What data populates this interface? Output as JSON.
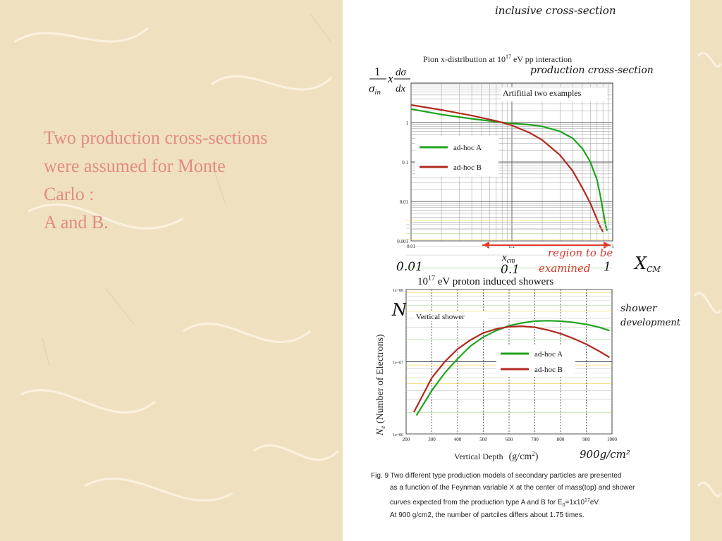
{
  "slide": {
    "lines": [
      "Two production cross-sections",
      "were assumed for Monte",
      "Carlo :",
      "A and B."
    ],
    "color": "#e28a86"
  },
  "notes": {
    "top": "inclusive cross-section",
    "production": "production cross-section",
    "region": [
      "region to be",
      "examined"
    ],
    "x_small": "0.01",
    "x_mid": "0.1",
    "x_one": "1",
    "xcm": "X",
    "xcm_sub": "CM",
    "ne": "N",
    "ne_sub": "e",
    "shower": [
      "shower",
      "development"
    ],
    "depth_mark": "900g/cm²"
  },
  "chart_data": [
    {
      "type": "line",
      "title": "Pion x-distribution at 10",
      "title_sup": "17",
      "title_suffix": " eV pp interaction",
      "ylabel_num": "dσ",
      "ylabel_den": "dx",
      "ylabel_prefix_num": "1",
      "ylabel_prefix_den": "σ",
      "ylabel_prefix_sub": "in",
      "ylabel_x": "x",
      "xlabel": "x",
      "xlabel_sub": "cm",
      "annotation": "Artifitial two  examples",
      "xscale": "log",
      "yscale": "log",
      "xlim": [
        0.01,
        1
      ],
      "ylim": [
        0.001,
        10
      ],
      "xticks": [
        "0.01",
        "0.1",
        "1"
      ],
      "yticks": [
        "0.001",
        "0.01",
        "0.1",
        "1"
      ],
      "legend_placement": "left",
      "grid": true,
      "series": [
        {
          "name": "ad-hoc A",
          "color": "#1fa31f",
          "x": [
            0.01,
            0.02,
            0.04,
            0.07,
            0.1,
            0.15,
            0.2,
            0.3,
            0.4,
            0.5,
            0.6,
            0.7,
            0.75,
            0.8,
            0.85,
            0.88
          ],
          "y": [
            2.2,
            1.6,
            1.25,
            1.05,
            0.95,
            0.88,
            0.8,
            0.6,
            0.4,
            0.22,
            0.1,
            0.035,
            0.015,
            0.006,
            0.0025,
            0.0018
          ]
        },
        {
          "name": "ad-hoc B",
          "color": "#b02a20",
          "x": [
            0.01,
            0.02,
            0.04,
            0.07,
            0.1,
            0.15,
            0.2,
            0.3,
            0.4,
            0.5,
            0.6,
            0.7,
            0.75,
            0.8
          ],
          "y": [
            2.8,
            2.1,
            1.5,
            1.1,
            0.85,
            0.55,
            0.36,
            0.15,
            0.06,
            0.022,
            0.009,
            0.0035,
            0.0023,
            0.0017
          ]
        }
      ]
    },
    {
      "type": "line",
      "title": "10",
      "title_sup": "17",
      "title_suffix": " eV proton induced showers",
      "ylabel": "N",
      "ylabel_sub": "e",
      "ylabel_suffix": " (Number of Electrons)",
      "xlabel": "Vertical Depth",
      "xunit": "(g/cm",
      "xunit_sup": "2",
      "xunit_end": ")",
      "annotation": "Vertical shower",
      "xlim": [
        200,
        1000
      ],
      "yscale": "log",
      "ylim": [
        1000000,
        100000000
      ],
      "xticks": [
        "200",
        "300",
        "400",
        "500",
        "600",
        "700",
        "800",
        "900",
        "1000"
      ],
      "yticks": [
        "1e+06",
        "1e+07",
        "1e+08"
      ],
      "legend_placement": "center-right",
      "grid": true,
      "series": [
        {
          "name": "ad-hoc A",
          "color": "#1fa31f",
          "x": [
            240,
            300,
            350,
            400,
            450,
            500,
            550,
            600,
            650,
            700,
            750,
            800,
            850,
            900,
            950,
            990
          ],
          "y": [
            1800000,
            4000000,
            7000000,
            11000000,
            16500000,
            22000000,
            27000000,
            31500000,
            34500000,
            36500000,
            37000000,
            36500000,
            35000000,
            33000000,
            30000000,
            27000000
          ]
        },
        {
          "name": "ad-hoc B",
          "color": "#b02a20",
          "x": [
            230,
            300,
            350,
            400,
            450,
            500,
            550,
            600,
            650,
            700,
            750,
            800,
            850,
            900,
            950,
            990
          ],
          "y": [
            2000000,
            6000000,
            10000000,
            15000000,
            20000000,
            25000000,
            28500000,
            30500000,
            31000000,
            30000000,
            27500000,
            24500000,
            21000000,
            17500000,
            14000000,
            11500000
          ]
        }
      ]
    }
  ],
  "caption": {
    "line1": "Fig. 9 Two different type production models of secondary particles are presented",
    "line2": "as a function of the Feynman variable X at the center of mass(top) and shower",
    "line3a": "curves expected from the production type A and B for E",
    "line3sub": "0",
    "line3b": "=1x10",
    "line3sup": "17",
    "line3c": "eV.",
    "line4": "At 900 g/cm2, the number of partciles differs about 1.75 times."
  }
}
